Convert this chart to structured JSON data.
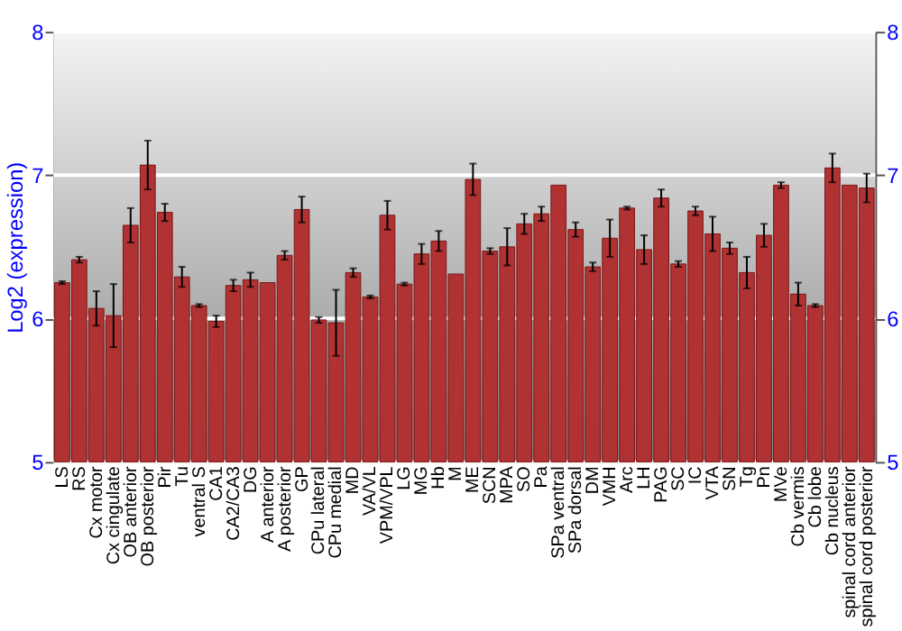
{
  "chart_data": {
    "type": "bar",
    "ylabel": "Log2 (expression)",
    "categories": [
      "LS",
      "RS",
      "Cx motor",
      "Cx cingulate",
      "OB anterior",
      "OB posterior",
      "Pir",
      "Tu",
      "ventral S",
      "CA1",
      "CA2/CA3",
      "DG",
      "A anterior",
      "A posterior",
      "GP",
      "CPu lateral",
      "CPu medial",
      "MD",
      "VA/VL",
      "VPM/VPL",
      "LG",
      "MG",
      "Hb",
      "M",
      "ME",
      "SCN",
      "MPA",
      "SO",
      "Pa",
      "SPa ventral",
      "SPa dorsal",
      "DM",
      "VMH",
      "Arc",
      "LH",
      "PAG",
      "SC",
      "IC",
      "VTA",
      "SN",
      "Tg",
      "Pn",
      "MVe",
      "Cb vermis",
      "Cb lobe",
      "Cb nucleus",
      "spinal cord anterior",
      "spinal cord posterior"
    ],
    "series": [
      {
        "color": "#b03232",
        "values": [
          6.25,
          6.41,
          6.07,
          6.02,
          6.65,
          7.07,
          6.74,
          6.29,
          6.09,
          5.98,
          6.23,
          6.27,
          6.25,
          6.44,
          6.76,
          5.99,
          5.97,
          6.32,
          6.15,
          6.72,
          6.24,
          6.45,
          6.54,
          6.31,
          6.97,
          6.47,
          6.5,
          6.66,
          6.73,
          6.93,
          6.62,
          6.36,
          6.56,
          6.77,
          6.48,
          6.84,
          6.38,
          6.75,
          6.59,
          6.49,
          6.32,
          6.58,
          6.93,
          6.17,
          6.09,
          7.05,
          6.93,
          6.91
        ],
        "errors": [
          0.01,
          0.02,
          0.12,
          0.22,
          0.12,
          0.17,
          0.06,
          0.07,
          0.01,
          0.04,
          0.04,
          0.05,
          null,
          0.03,
          0.09,
          0.02,
          0.23,
          0.03,
          0.01,
          0.1,
          0.01,
          0.07,
          0.07,
          null,
          0.11,
          0.02,
          0.13,
          0.07,
          0.05,
          null,
          0.05,
          0.03,
          0.13,
          0.01,
          0.1,
          0.06,
          0.02,
          0.03,
          0.12,
          0.04,
          0.11,
          0.08,
          0.02,
          0.08,
          0.01,
          0.1,
          null,
          0.1
        ]
      }
    ],
    "ylim": [
      5,
      8
    ],
    "yticks": [
      5,
      6,
      7,
      8
    ],
    "y2lim": [
      5,
      8
    ],
    "y2ticks": [
      5,
      6,
      7,
      8
    ],
    "grid": "y"
  }
}
